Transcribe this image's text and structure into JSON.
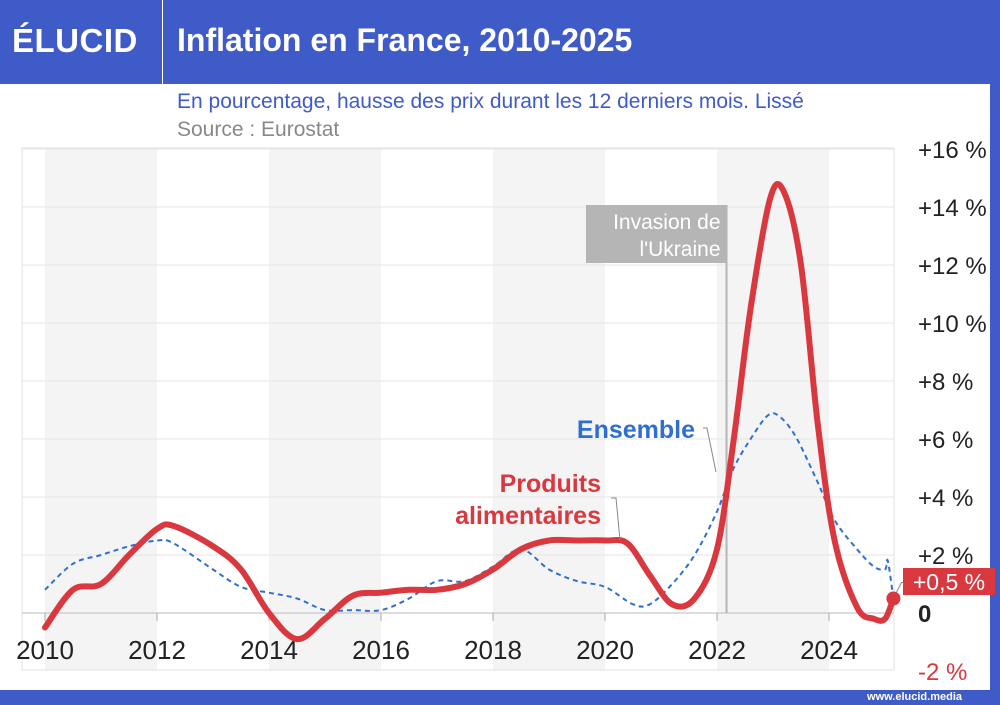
{
  "header": {
    "logo": "ÉLUCID",
    "title": "Inflation en France, 2010-2025"
  },
  "subtitle": "En pourcentage, hausse des prix durant les 12 derniers mois. Lissé",
  "source": "Source : Eurostat",
  "footer": "www.elucid.media",
  "colors": {
    "brand": "#3f5bc8",
    "food": "#d9383f",
    "overall": "#2f6fd0",
    "annotation": "#b5b5b5"
  },
  "chart_data": {
    "type": "line",
    "title": "Inflation en France, 2010-2025",
    "xlim": [
      2010,
      2025.2
    ],
    "ylim": [
      -2,
      16
    ],
    "grid": true,
    "x_ticks": [
      {
        "v": 2010,
        "label": "2010"
      },
      {
        "v": 2012,
        "label": "2012"
      },
      {
        "v": 2014,
        "label": "2014"
      },
      {
        "v": 2016,
        "label": "2016"
      },
      {
        "v": 2018,
        "label": "2018"
      },
      {
        "v": 2020,
        "label": "2020"
      },
      {
        "v": 2022,
        "label": "2022"
      },
      {
        "v": 2024,
        "label": "2024"
      }
    ],
    "y_ticks": [
      {
        "v": 16,
        "label": "+16 %"
      },
      {
        "v": 14,
        "label": "+14 %"
      },
      {
        "v": 12,
        "label": "+12 %"
      },
      {
        "v": 10,
        "label": "+10 %"
      },
      {
        "v": 8,
        "label": "+8 %"
      },
      {
        "v": 6,
        "label": "+6 %"
      },
      {
        "v": 4,
        "label": "+4 %"
      },
      {
        "v": 2,
        "label": "+2 %"
      },
      {
        "v": 0,
        "label": "0"
      },
      {
        "v": -2,
        "label": "-2 %"
      }
    ],
    "series": [
      {
        "name": "Produits alimentaires",
        "color": "#d9383f",
        "style": "solid",
        "x": [
          2010,
          2010.5,
          2011,
          2011.5,
          2012,
          2012.3,
          2013,
          2013.5,
          2014,
          2014.5,
          2015,
          2015.5,
          2016,
          2016.5,
          2017,
          2017.5,
          2018,
          2018.5,
          2019,
          2019.5,
          2020,
          2020.4,
          2020.8,
          2021.2,
          2021.6,
          2022,
          2022.3,
          2022.6,
          2022.95,
          2023.2,
          2023.5,
          2023.8,
          2024.1,
          2024.5,
          2024.8,
          2025,
          2025.15
        ],
        "y": [
          -0.5,
          0.8,
          1.0,
          2.0,
          2.9,
          3.0,
          2.3,
          1.5,
          0.0,
          -0.9,
          -0.2,
          0.6,
          0.7,
          0.8,
          0.8,
          1.0,
          1.5,
          2.2,
          2.5,
          2.5,
          2.5,
          2.4,
          1.3,
          0.3,
          0.5,
          2.2,
          6.0,
          10.5,
          14.3,
          14.5,
          12.0,
          6.5,
          2.5,
          0.2,
          -0.2,
          -0.2,
          0.5
        ]
      },
      {
        "name": "Ensemble",
        "color": "#2f6fd0",
        "style": "dashed",
        "x": [
          2010,
          2010.5,
          2011,
          2011.5,
          2012,
          2012.3,
          2013,
          2013.5,
          2014,
          2014.5,
          2015,
          2015.5,
          2016,
          2016.5,
          2017,
          2017.5,
          2018,
          2018.5,
          2019,
          2019.5,
          2020,
          2020.5,
          2020.8,
          2021.2,
          2021.6,
          2022,
          2022.3,
          2022.6,
          2022.9,
          2023.1,
          2023.4,
          2023.8,
          2024.1,
          2024.5,
          2024.8,
          2025,
          2025.05,
          2025.15
        ],
        "y": [
          0.8,
          1.7,
          2.0,
          2.3,
          2.5,
          2.4,
          1.5,
          0.9,
          0.7,
          0.5,
          0.1,
          0.1,
          0.1,
          0.5,
          1.1,
          1.1,
          1.6,
          2.2,
          1.5,
          1.1,
          0.9,
          0.3,
          0.3,
          1.0,
          2.0,
          3.5,
          5.0,
          6.0,
          6.8,
          6.8,
          6.1,
          4.5,
          3.2,
          2.2,
          1.6,
          1.5,
          1.8,
          0.5
        ]
      }
    ],
    "annotations": {
      "event": {
        "x": 2022.17,
        "label_line1": "Invasion de",
        "label_line2": "l'Ukraine"
      },
      "last_value": "+0,5 %"
    }
  }
}
